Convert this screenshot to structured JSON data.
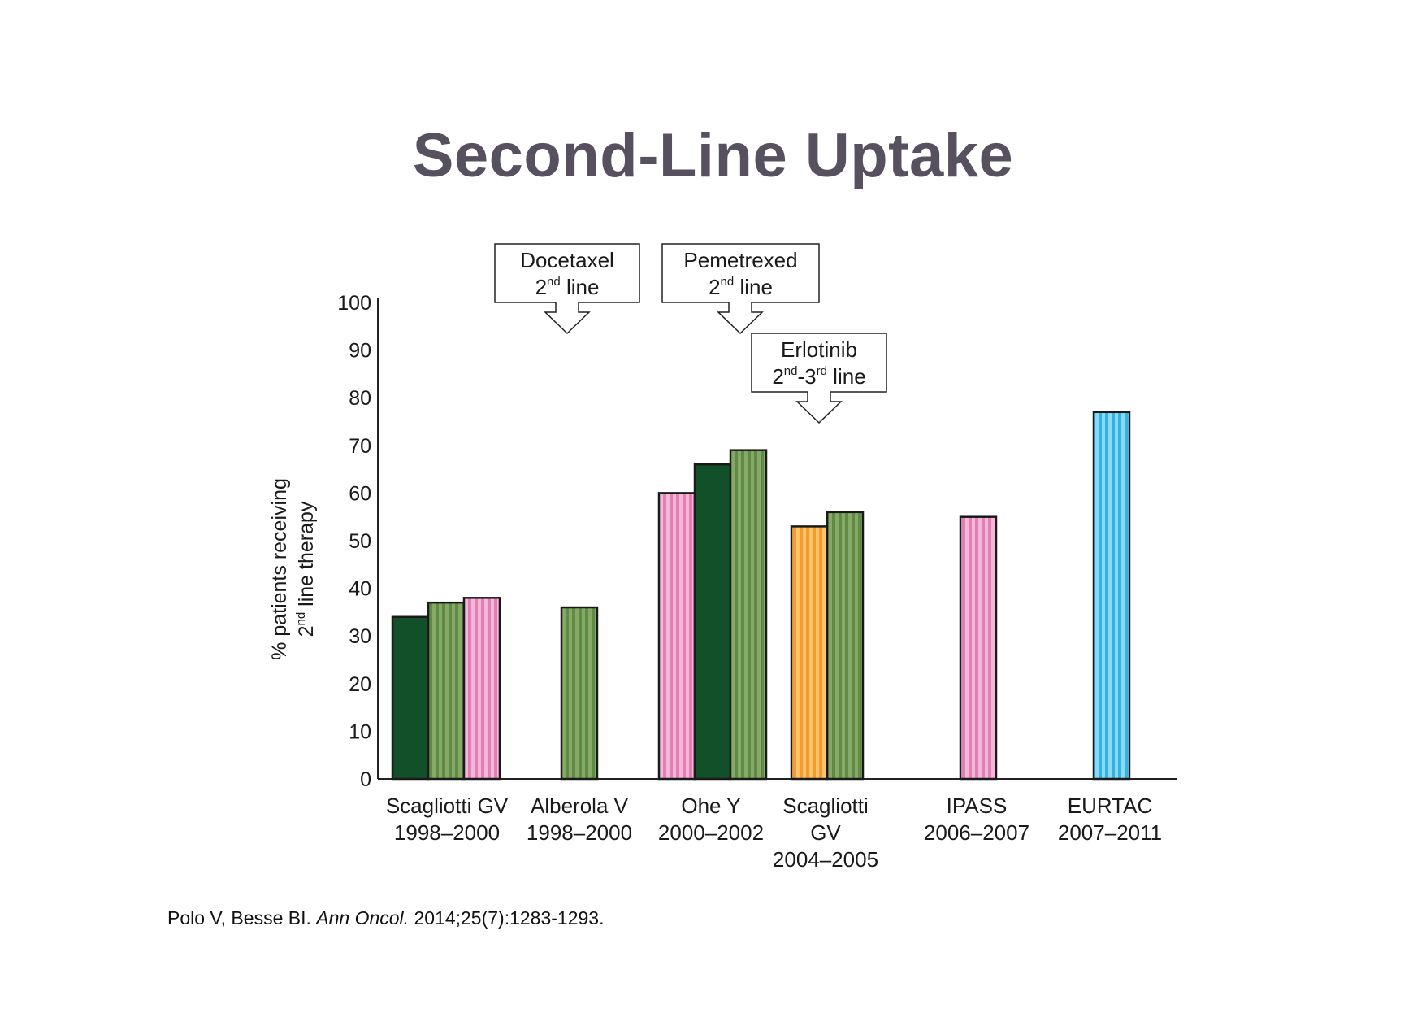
{
  "title": "Second-Line Uptake",
  "citation": {
    "authors": "Polo V, Besse BI.",
    "journal": "Ann Oncol.",
    "ref": "2014;25(7):1283-1293."
  },
  "colors": {
    "dark_green": "#12502a",
    "green_stripe": "#5f8a47",
    "green_stripe_light": "#86aa66",
    "pink_stripe": "#e27fb6",
    "pink_stripe_light": "#f3b8d7",
    "orange_stripe": "#f59a2c",
    "orange_stripe_light": "#fcc36b",
    "blue_stripe": "#2fb4e6",
    "blue_stripe_light": "#8fd8f4"
  },
  "chart_data": {
    "type": "bar",
    "title": "",
    "ylabel_line1": "% patients receiving",
    "ylabel_line2_pre": "2",
    "ylabel_line2_sup": "nd",
    "ylabel_line2_post": " line therapy",
    "ylim": [
      0,
      100
    ],
    "yticks": [
      "0",
      "10",
      "20",
      "30",
      "40",
      "50",
      "60",
      "70",
      "80",
      "90",
      "100"
    ],
    "grid": false,
    "groups": [
      {
        "label": [
          "Scagliotti GV",
          "1998–2000"
        ],
        "bars": [
          {
            "value": 34,
            "style": "dark_green"
          },
          {
            "value": 37,
            "style": "green_stripe"
          },
          {
            "value": 38,
            "style": "pink_stripe"
          }
        ]
      },
      {
        "label": [
          "Alberola V",
          "1998–2000"
        ],
        "bars": [
          {
            "value": 36,
            "style": "green_stripe"
          }
        ]
      },
      {
        "label": [
          "Ohe Y",
          "2000–2002"
        ],
        "bars": [
          {
            "value": 60,
            "style": "pink_stripe"
          },
          {
            "value": 66,
            "style": "dark_green"
          },
          {
            "value": 69,
            "style": "green_stripe"
          }
        ]
      },
      {
        "label": [
          "Scagliotti",
          "GV",
          "2004–2005"
        ],
        "bars": [
          {
            "value": 53,
            "style": "orange_stripe"
          },
          {
            "value": 56,
            "style": "green_stripe"
          }
        ]
      },
      {
        "label": [
          "IPASS",
          "2006–2007"
        ],
        "bars": [
          {
            "value": 55,
            "style": "pink_stripe"
          }
        ]
      },
      {
        "label": [
          "EURTAC",
          "2007–2011"
        ],
        "bars": [
          {
            "value": 77,
            "style": "blue_stripe"
          }
        ]
      }
    ],
    "annotations": [
      {
        "line1": "Docetaxel",
        "line2_pre": "2",
        "line2_sup": "nd",
        "line2_mid": "",
        "line2_sup2": "",
        "line2_post": " line"
      },
      {
        "line1": "Pemetrexed",
        "line2_pre": "2",
        "line2_sup": "nd",
        "line2_mid": "",
        "line2_sup2": "",
        "line2_post": " line"
      },
      {
        "line1": "Erlotinib",
        "line2_pre": "2",
        "line2_sup": "nd",
        "line2_mid": "-3",
        "line2_sup2": "rd",
        "line2_post": " line"
      }
    ]
  }
}
